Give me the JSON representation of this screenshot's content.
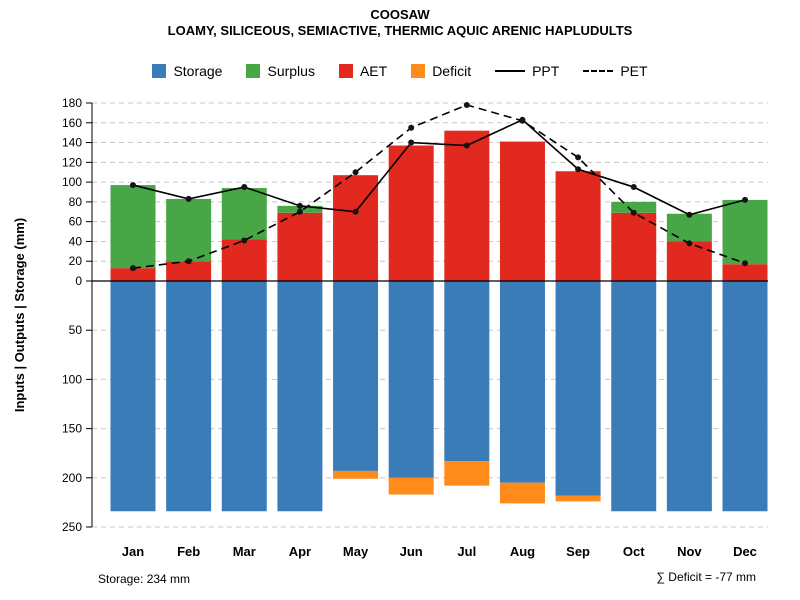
{
  "header": {
    "title": "COOSAW",
    "subtitle": "LOAMY, SILICEOUS, SEMIACTIVE, THERMIC AQUIC ARENIC HAPLUDULTS"
  },
  "legend": {
    "items": [
      {
        "label": "Storage",
        "color": "#3a7cb8",
        "type": "swatch"
      },
      {
        "label": "Surplus",
        "color": "#47a747",
        "type": "swatch"
      },
      {
        "label": "AET",
        "color": "#e2291f",
        "type": "swatch"
      },
      {
        "label": "Deficit",
        "color": "#ff8c1a",
        "type": "swatch"
      },
      {
        "label": "PPT",
        "color": "#000000",
        "type": "line"
      },
      {
        "label": "PET",
        "color": "#000000",
        "type": "dashed-line"
      }
    ]
  },
  "chart_data": {
    "type": "bar",
    "title": "COOSAW",
    "subtitle": "LOAMY, SILICEOUS, SEMIACTIVE, THERMIC AQUIC ARENIC HAPLUDULTS",
    "ylabel": "Inputs | Outputs | Storage   (mm)",
    "categories": [
      "Jan",
      "Feb",
      "Mar",
      "Apr",
      "May",
      "Jun",
      "Jul",
      "Aug",
      "Sep",
      "Oct",
      "Nov",
      "Dec"
    ],
    "upper_axis": {
      "lim": [
        0,
        180
      ],
      "ticks": [
        0,
        20,
        40,
        60,
        80,
        100,
        120,
        140,
        160,
        180
      ]
    },
    "lower_axis": {
      "lim": [
        0,
        250
      ],
      "ticks": [
        50,
        100,
        150,
        200,
        250
      ],
      "inverted": true
    },
    "grid": true,
    "legend_position": "top",
    "series": [
      {
        "name": "AET",
        "type": "bar-up",
        "color": "#e2291f",
        "values": [
          13,
          20,
          42,
          69,
          107,
          137,
          152,
          141,
          111,
          69,
          40,
          17
        ]
      },
      {
        "name": "Surplus",
        "type": "bar-up-stacked",
        "color": "#47a747",
        "values": [
          84,
          63,
          52,
          7,
          0,
          0,
          0,
          0,
          0,
          11,
          28,
          65
        ]
      },
      {
        "name": "Storage",
        "type": "bar-down",
        "color": "#3a7cb8",
        "values": [
          234,
          234,
          234,
          234,
          193,
          200,
          183,
          205,
          218,
          234,
          234,
          234
        ]
      },
      {
        "name": "Deficit",
        "type": "bar-down-append",
        "color": "#ff8c1a",
        "values": [
          0,
          0,
          0,
          0,
          8,
          17,
          25,
          21,
          6,
          0,
          0,
          0
        ]
      },
      {
        "name": "PPT",
        "type": "line",
        "style": "solid",
        "color": "#000000",
        "values": [
          97,
          83,
          95,
          76,
          70,
          140,
          137,
          163,
          113,
          95,
          67,
          82
        ]
      },
      {
        "name": "PET",
        "type": "line",
        "style": "dashed",
        "color": "#000000",
        "values": [
          13,
          20,
          41,
          70,
          110,
          155,
          178,
          162,
          125,
          69,
          38,
          18
        ]
      }
    ],
    "storage_total_mm": 234,
    "deficit_total_mm": -77
  },
  "footer": {
    "storage_text": "Storage: 234 mm",
    "deficit_text": "∑ Deficit = -77 mm"
  }
}
